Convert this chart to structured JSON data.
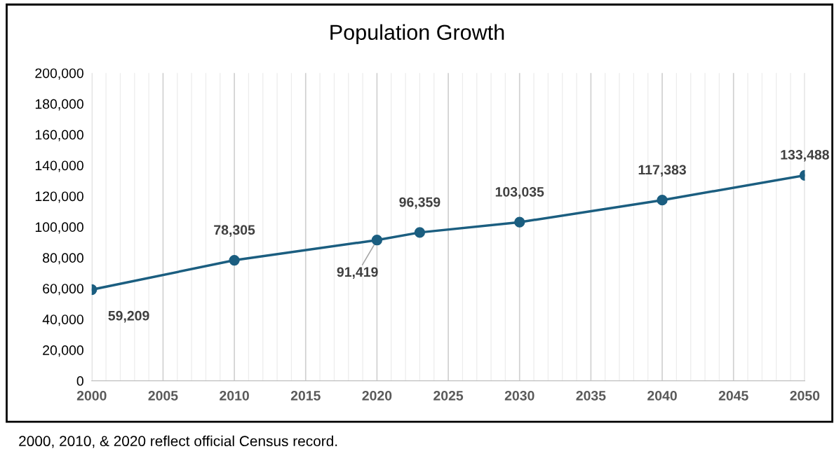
{
  "chart_data": {
    "type": "line",
    "title": "Population Growth",
    "x": [
      2000,
      2010,
      2020,
      2023,
      2030,
      2040,
      2050
    ],
    "series": [
      {
        "color": "#1b5e80",
        "values": [
          59209,
          78305,
          91419,
          96359,
          103035,
          117383,
          133488
        ],
        "value_labels": [
          "59,209",
          "78,305",
          "91,419",
          "96,359",
          "103,035",
          "117,383",
          "133,488"
        ]
      }
    ],
    "xlim": [
      2000,
      2050
    ],
    "xticks": [
      2000,
      {
        "value": 2001,
        "label": null
      },
      {
        "value": 2002,
        "label": null
      },
      {
        "value": 2003,
        "label": null
      },
      {
        "value": 2004,
        "label": null
      },
      2005,
      {
        "value": 2006,
        "label": null
      },
      {
        "value": 2007,
        "label": null
      },
      {
        "value": 2008,
        "label": null
      },
      {
        "value": 2009,
        "label": null
      },
      2010,
      {
        "value": 2011,
        "label": null
      },
      {
        "value": 2012,
        "label": null
      },
      {
        "value": 2013,
        "label": null
      },
      {
        "value": 2014,
        "label": null
      },
      2015,
      {
        "value": 2016,
        "label": null
      },
      {
        "value": 2017,
        "label": null
      },
      {
        "value": 2018,
        "label": null
      },
      {
        "value": 2019,
        "label": null
      },
      2020,
      {
        "value": 2021,
        "label": null
      },
      {
        "value": 2022,
        "label": null
      },
      {
        "value": 2023,
        "label": null
      },
      {
        "value": 2024,
        "label": null
      },
      2025,
      {
        "value": 2026,
        "label": null
      },
      {
        "value": 2027,
        "label": null
      },
      {
        "value": 2028,
        "label": null
      },
      {
        "value": 2029,
        "label": null
      },
      2030,
      {
        "value": 2031,
        "label": null
      },
      {
        "value": 2032,
        "label": null
      },
      {
        "value": 2033,
        "label": null
      },
      {
        "value": 2034,
        "label": null
      },
      2035,
      {
        "value": 2036,
        "label": null
      },
      {
        "value": 2037,
        "label": null
      },
      {
        "value": 2038,
        "label": null
      },
      {
        "value": 2039,
        "label": null
      },
      2040,
      {
        "value": 2041,
        "label": null
      },
      {
        "value": 2042,
        "label": null
      },
      {
        "value": 2043,
        "label": null
      },
      {
        "value": 2044,
        "label": null
      },
      2045,
      {
        "value": 2046,
        "label": null
      },
      {
        "value": 2047,
        "label": null
      },
      {
        "value": 2048,
        "label": null
      },
      {
        "value": 2049,
        "label": null
      },
      2050
    ],
    "ylim": [
      0,
      200000
    ],
    "yticks": [
      {
        "value": 0,
        "label": "0"
      },
      {
        "value": 20000,
        "label": "20,000"
      },
      {
        "value": 40000,
        "label": "40,000"
      },
      {
        "value": 60000,
        "label": "60,000"
      },
      {
        "value": 80000,
        "label": "80,000"
      },
      {
        "value": 100000,
        "label": "100,000"
      },
      {
        "value": 120000,
        "label": "120,000"
      },
      {
        "value": 140000,
        "label": "140,000"
      },
      {
        "value": 160000,
        "label": "160,000"
      },
      {
        "value": 180000,
        "label": "180,000"
      },
      {
        "value": 200000,
        "label": "200,000"
      }
    ],
    "grid": "x",
    "marker": "circle",
    "line_style": "solid",
    "legend": false,
    "annotations": [
      "2000, 2010, & 2020 reflect official Census record."
    ]
  }
}
